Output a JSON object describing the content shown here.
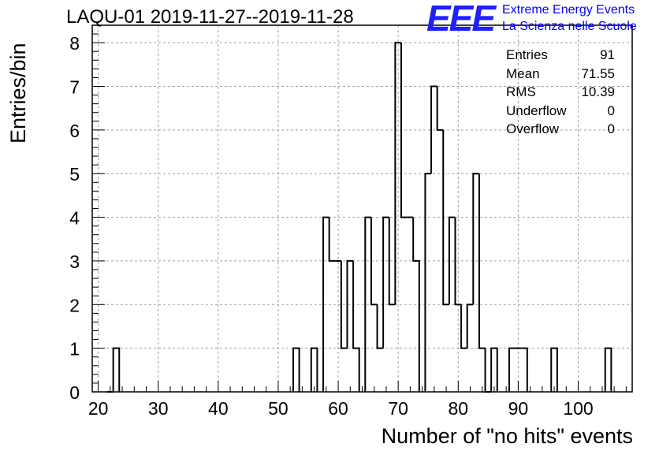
{
  "header": {
    "title": "LAQU-01 2019-11-27--2019-11-28",
    "logo_text": "EEE",
    "logo_line1": "Extreme Energy Events",
    "logo_line2": "La Scienza nelle Scuole",
    "logo_color": "#1f1fff"
  },
  "stats": [
    {
      "label": "Entries",
      "value": "91"
    },
    {
      "label": "Mean",
      "value": "71.55"
    },
    {
      "label": "RMS",
      "value": "10.39"
    },
    {
      "label": "Underflow",
      "value": "0"
    },
    {
      "label": "Overflow",
      "value": "0"
    }
  ],
  "chart_data": {
    "type": "histogram",
    "xlabel": "Number of \"no hits\" events",
    "ylabel": "Entries/bin",
    "xlim": [
      19,
      109
    ],
    "ylim": [
      0,
      8.4
    ],
    "bin_width": 1,
    "xticks": [
      20,
      30,
      40,
      50,
      60,
      70,
      80,
      90,
      100
    ],
    "yticks": [
      0,
      1,
      2,
      3,
      4,
      5,
      6,
      7,
      8
    ],
    "grid": true,
    "line_color": "#000000",
    "bins": [
      {
        "x": 22,
        "y": 0
      },
      {
        "x": 23,
        "y": 1
      },
      {
        "x": 53,
        "y": 1
      },
      {
        "x": 56,
        "y": 1
      },
      {
        "x": 58,
        "y": 4
      },
      {
        "x": 59,
        "y": 3
      },
      {
        "x": 60,
        "y": 3
      },
      {
        "x": 61,
        "y": 1
      },
      {
        "x": 62,
        "y": 3
      },
      {
        "x": 63,
        "y": 1
      },
      {
        "x": 65,
        "y": 4
      },
      {
        "x": 66,
        "y": 2
      },
      {
        "x": 67,
        "y": 1
      },
      {
        "x": 68,
        "y": 4
      },
      {
        "x": 69,
        "y": 2
      },
      {
        "x": 70,
        "y": 8
      },
      {
        "x": 71,
        "y": 4
      },
      {
        "x": 72,
        "y": 4
      },
      {
        "x": 73,
        "y": 3
      },
      {
        "x": 75,
        "y": 5
      },
      {
        "x": 76,
        "y": 7
      },
      {
        "x": 77,
        "y": 6
      },
      {
        "x": 78,
        "y": 2
      },
      {
        "x": 79,
        "y": 4
      },
      {
        "x": 80,
        "y": 2
      },
      {
        "x": 81,
        "y": 1
      },
      {
        "x": 82,
        "y": 2
      },
      {
        "x": 83,
        "y": 5
      },
      {
        "x": 84,
        "y": 1
      },
      {
        "x": 85,
        "y": 0
      },
      {
        "x": 86,
        "y": 1
      },
      {
        "x": 89,
        "y": 1
      },
      {
        "x": 90,
        "y": 1
      },
      {
        "x": 91,
        "y": 1
      },
      {
        "x": 96,
        "y": 1
      },
      {
        "x": 105,
        "y": 1
      }
    ]
  }
}
